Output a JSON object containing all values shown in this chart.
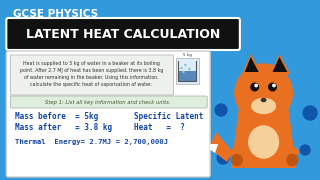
{
  "bg_color": "#3399dd",
  "title_top": "GCSE PHYSICS",
  "title_main": "LATENT HEAT CALCULATION",
  "title_main_bg": "#111111",
  "problem_text": "Heat is supplied to 5 kg of water in a beaker at its boiling\npoint. After 2.7 MJ of heat has been supplied, there is 3.8 kg\nof water remaining in the beaker. Using this information,\ncalculate the specific heat of vaporisation of water.",
  "step_text": "Step 1: List all key information and check units.",
  "line1_left": "Mass before  = 5kg",
  "line2_left": "Mass after   = 3.8 kg",
  "line3_left": "Thermal  Energy= 2.7MJ = 2,700,000J",
  "line1_right": "Specific Latent",
  "line2_right": "Heat   =  ?",
  "text_color_blue": "#1144aa",
  "box_bg": "#ffffff",
  "step_bg": "#ddeedd",
  "fox_orange": "#e87020",
  "fox_light": "#f5d09a",
  "fox_dark": "#111111",
  "dot_color": "#1155aa"
}
